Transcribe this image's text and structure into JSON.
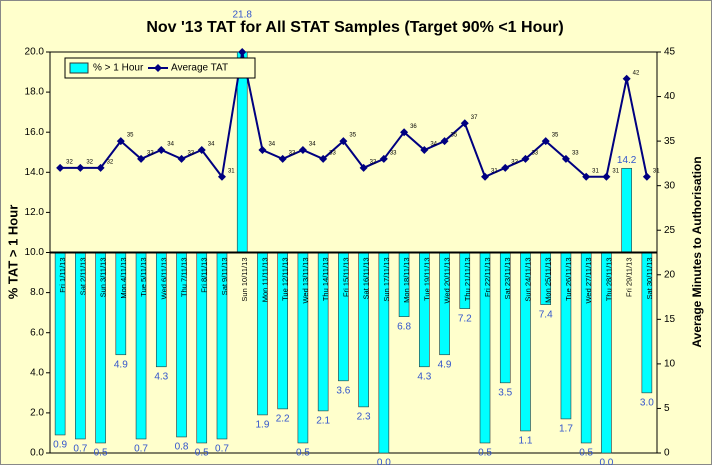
{
  "chart_data": {
    "type": "bar-line",
    "title": "Nov '13 TAT for All STAT Samples (Target 90% <1 Hour)",
    "ylabel": "% TAT > 1 Hour",
    "y2label": "Average Minutes to Authorisation",
    "categories": [
      "Fri 1/11/13",
      "Sat 2/11/13",
      "Sun 3/11/13",
      "Mon 4/11/13",
      "Tue 5/11/13",
      "Wed 6/11/13",
      "Thu 7/11/13",
      "Fri 8/11/13",
      "Sat 9/11/13",
      "Sun 10/11/13",
      "Mon 11/11/13",
      "Tue 12/11/13",
      "Wed 13/11/13",
      "Thu 14/11/13",
      "Fri 15/11/13",
      "Sat 16/11/13",
      "Sun 17/11/13",
      "Mon 18/11/13",
      "Tue 19/11/13",
      "Wed 20/11/13",
      "Thu 21/11/13",
      "Fri 22/11/13",
      "Sat 23/11/13",
      "Sun 24/11/13",
      "Mon 25/11/13",
      "Tue 26/11/13",
      "Wed 27/11/13",
      "Thu 28/11/13",
      "Fri 29/11/13",
      "Sat 30/11/13"
    ],
    "series": [
      {
        "name": "% > 1 Hour",
        "type": "bar",
        "color": "#00ffff",
        "values": [
          0.9,
          0.7,
          0.5,
          4.9,
          0.7,
          4.3,
          0.8,
          0.5,
          0.7,
          21.8,
          1.9,
          2.2,
          0.5,
          2.1,
          3.6,
          2.3,
          0.0,
          6.8,
          4.3,
          4.9,
          7.2,
          0.5,
          3.5,
          1.1,
          7.4,
          1.7,
          0.5,
          0.0,
          14.2,
          3.0
        ],
        "value_labels": [
          "0.9",
          "0.7",
          "0.5",
          "4.9",
          "0.7",
          "4.3",
          "0.8",
          "0.5",
          "0.7",
          "21.8",
          "1.9",
          "2.2",
          "0.5",
          "2.1",
          "3.6",
          "2.3",
          "0.0",
          "6.8",
          "4.3",
          "4.9",
          "7.2",
          "0.5",
          "3.5",
          "1.1",
          "7.4",
          "1.7",
          "0.5",
          "0.0",
          "14.2",
          "3.0"
        ]
      },
      {
        "name": "Average TAT",
        "type": "line",
        "color": "#000080",
        "axis": "y2",
        "values": [
          32,
          32,
          32,
          35,
          33,
          34,
          33,
          34,
          31,
          45,
          34,
          33,
          34,
          33,
          35,
          32,
          33,
          36,
          34,
          35,
          37,
          31,
          32,
          33,
          35,
          33,
          31,
          31,
          42,
          31
        ],
        "value_labels": [
          "32",
          "32",
          "32",
          "35",
          "33",
          "34",
          "33",
          "34",
          "31",
          null,
          "34",
          "33",
          "34",
          "33",
          "35",
          "32",
          "33",
          "36",
          "34",
          "35",
          "37",
          "31",
          "32",
          "33",
          "35",
          "33",
          "31",
          "31",
          "42",
          "31"
        ]
      }
    ],
    "bar_base": 10,
    "ylim": [
      0,
      20
    ],
    "yticks": [
      {
        "value": 0,
        "label": "0.0"
      },
      {
        "value": 2,
        "label": "2.0"
      },
      {
        "value": 4,
        "label": "4.0"
      },
      {
        "value": 6,
        "label": "6.0"
      },
      {
        "value": 8,
        "label": "8.0"
      },
      {
        "value": 10,
        "label": "10.0"
      },
      {
        "value": 12,
        "label": "12.0"
      },
      {
        "value": 14,
        "label": "14.0"
      },
      {
        "value": 16,
        "label": "16.0"
      },
      {
        "value": 18,
        "label": "18.0"
      },
      {
        "value": 20,
        "label": "20.0"
      }
    ],
    "y2lim": [
      0,
      45
    ],
    "y2ticks": [
      0,
      5,
      10,
      15,
      20,
      25,
      30,
      35,
      40,
      45
    ],
    "legend": "top-left"
  }
}
